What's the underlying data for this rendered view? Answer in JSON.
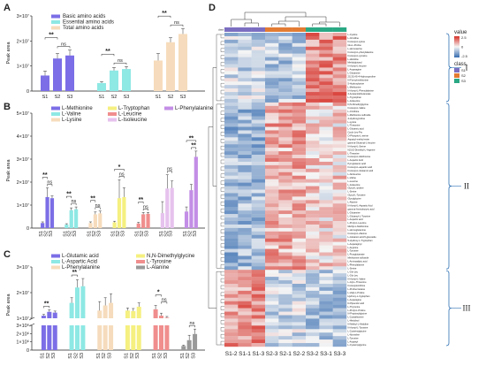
{
  "panels": {
    "A": {
      "letter": "A",
      "ylabel": "Peak area",
      "exponent_label": "×10⁷",
      "chart_data": {
        "type": "bar",
        "ylim": [
          0,
          3
        ],
        "yticks": [
          0,
          1,
          2,
          3
        ],
        "ytick_labels": [
          "0",
          "1×10⁷",
          "2×10⁷",
          "3×10⁷"
        ],
        "groups": [
          "S1",
          "S2",
          "S3"
        ],
        "series": [
          {
            "name": "Basic amino acids",
            "color": "#7b6ee6",
            "values": [
              0.62,
              1.3,
              1.42
            ],
            "errors": [
              0.18,
              0.2,
              0.22
            ]
          },
          {
            "name": "Essential amino acids",
            "color": "#8ee8e4",
            "values": [
              0.32,
              0.82,
              0.88
            ],
            "errors": [
              0.06,
              0.12,
              0.1
            ]
          },
          {
            "name": "Total amino acids",
            "color": "#f6dcbc",
            "values": [
              1.22,
              1.95,
              2.28
            ],
            "errors": [
              0.28,
              0.18,
              0.22
            ]
          }
        ],
        "annotations": [
          {
            "series": 0,
            "pairs": [
              [
                "S1",
                "S2",
                "**"
              ],
              [
                "S2",
                "S3",
                "ns"
              ]
            ]
          },
          {
            "series": 1,
            "pairs": [
              [
                "S1",
                "S2",
                "**"
              ],
              [
                "S2",
                "S3",
                "ns"
              ]
            ]
          },
          {
            "series": 2,
            "pairs": [
              [
                "S1",
                "S2",
                "**"
              ],
              [
                "S2",
                "S3",
                "ns"
              ]
            ]
          }
        ]
      }
    },
    "B": {
      "letter": "B",
      "ylabel": "Peak area",
      "chart_data": {
        "type": "bar",
        "ylim": [
          0,
          5
        ],
        "yticks": [
          0,
          1,
          2,
          3,
          4,
          5
        ],
        "ytick_labels": [
          "0",
          "1×10⁷",
          "2×10⁷",
          "3×10⁷",
          "4×10⁷",
          "5×10⁷"
        ],
        "groups": [
          "S1",
          "S2",
          "S3"
        ],
        "series": [
          {
            "name": "L-Methionine",
            "color": "#7b6ee6",
            "values": [
              0.22,
              1.35,
              1.3
            ],
            "errors": [
              0.05,
              0.4,
              0.1
            ]
          },
          {
            "name": "L-Valine",
            "color": "#8ee8e4",
            "values": [
              0.15,
              0.78,
              0.82
            ],
            "errors": [
              0.04,
              0.1,
              0.1
            ]
          },
          {
            "name": "L-Lysine",
            "color": "#f6dcbc",
            "values": [
              0.22,
              0.6,
              0.64
            ],
            "errors": [
              0.05,
              0.1,
              0.1
            ]
          },
          {
            "name": "L-Tryptophan",
            "color": "#f5f080",
            "values": [
              0.25,
              1.3,
              1.35
            ],
            "errors": [
              0.05,
              0.8,
              0.4
            ]
          },
          {
            "name": "L-Leucine",
            "color": "#f08e8e",
            "values": [
              0.2,
              0.6,
              0.62
            ],
            "errors": [
              0.05,
              0.08,
              0.06
            ]
          },
          {
            "name": "L-Isoleucine",
            "color": "#e6c2ee",
            "values": [
              0.65,
              1.72,
              1.75
            ],
            "errors": [
              0.5,
              0.6,
              0.3
            ]
          },
          {
            "name": "L-Phenylalanine",
            "color": "#c38ee6",
            "values": [
              0.72,
              1.65,
              3.1
            ],
            "errors": [
              0.2,
              0.25,
              0.25
            ]
          }
        ],
        "annotations": [
          {
            "series": 0,
            "pairs": [
              [
                "S1",
                "S2",
                "**"
              ],
              [
                "S2",
                "S3",
                "ns"
              ]
            ]
          },
          {
            "series": 1,
            "pairs": [
              [
                "S1",
                "S2",
                "**"
              ],
              [
                "S2",
                "S3",
                "ns"
              ]
            ]
          },
          {
            "series": 2,
            "pairs": [
              [
                "S1",
                "S2",
                "**"
              ],
              [
                "S2",
                "S3",
                "ns"
              ]
            ]
          },
          {
            "series": 3,
            "pairs": [
              [
                "S1",
                "S3",
                "*"
              ],
              [
                "S2",
                "S3",
                "ns"
              ]
            ]
          },
          {
            "series": 4,
            "pairs": [
              [
                "S1",
                "S2",
                "**"
              ],
              [
                "S2",
                "S3",
                "ns"
              ]
            ]
          },
          {
            "series": 5,
            "pairs": [
              [
                "S2",
                "S3",
                "ns"
              ]
            ]
          },
          {
            "series": 6,
            "pairs": [
              [
                "S1",
                "S3",
                "**"
              ],
              [
                "S2",
                "S3",
                "**"
              ]
            ]
          }
        ]
      }
    },
    "C": {
      "letter": "C",
      "ylabel": "Peak area",
      "chart_data": {
        "type": "bar",
        "broken_axis": true,
        "upper_ylim": [
          1,
          3
        ],
        "upper_yticks": [
          1,
          2,
          3
        ],
        "upper_ytick_labels": [
          "1×10⁷",
          "2×10⁷",
          "3×10⁷"
        ],
        "lower_ylim": [
          0,
          3
        ],
        "lower_yticks": [
          0,
          1,
          2,
          3
        ],
        "lower_ytick_labels": [
          "0",
          "1×10⁶",
          "2×10⁶",
          "3×10⁶"
        ],
        "groups": [
          "S1",
          "S2",
          "S3"
        ],
        "series": [
          {
            "name": "L-Glutamic acid",
            "color": "#7b6ee6",
            "values_scale": "1e7",
            "values": [
              1.1,
              1.25,
              1.22
            ],
            "errors": [
              0.05,
              0.08,
              0.06
            ]
          },
          {
            "name": "L-Aspartic Acid",
            "color": "#8ee8e4",
            "values_scale": "1e7",
            "values": [
              1.6,
              2.2,
              2.25
            ],
            "errors": [
              0.2,
              0.3,
              0.3
            ]
          },
          {
            "name": "L-Phenylalanine",
            "color": "#f6dcbc",
            "values_scale": "1e7",
            "values": [
              1.3,
              1.5,
              1.6
            ],
            "errors": [
              0.35,
              0.3,
              0.35
            ]
          },
          {
            "name": "N,N-Dimethylglycine",
            "color": "#f5f080",
            "values_scale": "1e7",
            "values": [
              1.3,
              1.28,
              1.45
            ],
            "errors": [
              0.1,
              0.1,
              0.15
            ]
          },
          {
            "name": "L-Tyrosine",
            "color": "#f08e8e",
            "values_scale": "1e7",
            "values": [
              1.35,
              1.1,
              1.02
            ],
            "errors": [
              0.15,
              0.1,
              0.05
            ]
          },
          {
            "name": "L-Alanine",
            "color": "#999999",
            "values_scale": "1e6",
            "values": [
              0.5,
              1.2,
              1.95
            ],
            "errors": [
              0.1,
              0.6,
              0.6
            ]
          }
        ],
        "annotations": [
          {
            "series": 0,
            "pairs": [
              [
                "S1",
                "S2",
                "**"
              ]
            ]
          },
          {
            "series": 1,
            "pairs": [
              [
                "S1",
                "S2",
                "**"
              ]
            ]
          },
          {
            "series": 4,
            "pairs": [
              [
                "S1",
                "S2",
                "*"
              ],
              [
                "S2",
                "S3",
                "ns"
              ]
            ]
          },
          {
            "series": 5,
            "pairs": [
              [
                "S2",
                "S3",
                "ns"
              ]
            ]
          }
        ]
      }
    },
    "D": {
      "letter": "D",
      "chart_data": {
        "type": "heatmap",
        "columns": [
          "S1-2",
          "S1-1",
          "S1-3",
          "S2-3",
          "S2-1",
          "S2-2",
          "S3-2",
          "S3-1",
          "S3-3"
        ],
        "class_row_label": "class",
        "class_colors": {
          "S1": "#7b6ec0",
          "S2": "#e27b33",
          "S3": "#2aa884"
        },
        "column_classes": [
          "S1",
          "S1",
          "S1",
          "S2",
          "S2",
          "S2",
          "S3",
          "S3",
          "S3"
        ],
        "legend_value_title": "value",
        "legend_value_ticks": [
          "2.5",
          "0",
          "-2.5"
        ],
        "legend_class_title": "class",
        "legend_class_items": [
          "S1",
          "S2",
          "S3"
        ],
        "cluster_labels": [
          "I",
          "II",
          "III"
        ],
        "cluster_row_counts": [
          20,
          48,
          22
        ],
        "row_labels": [
          "L-Cystine",
          "L-Citrulline",
          "N-Acetyl-L-lysine",
          "Glu-L-Proline",
          "L-Homoserine",
          "N-Acetyl-L-phenylalanine",
          "N-Acetyl-L-tyrosine",
          "L-Histidine",
          "Methylglutaryl",
          "N-Acetyl-L-leucine",
          "L-Asparagine",
          "L-Glutamine",
          "2S,3S,4S-4-Hydroxyproline",
          "N-Formylmethionine",
          "5-Hydroxylysine",
          "L-Methionine",
          "N-Acetyl-L-Phenylalanine",
          "4-Acetamidobutanoate",
          "L-Tryptophan",
          "L-Isoleucine",
          "N,N-Dimethylglycine",
          "N-Acetyl-L-Valine",
          "L-Ornithine",
          "L-Methionine sulfoxide",
          "4-Hydroxyproline",
          "L-Lysine",
          "L-Threonine",
          "L-Glutamic acid",
          "Cyclo-Leu-Pro",
          "O-Phospho-L-serine",
          "Aspartyl-methyl-ester",
          "gamma-Glutamyl-L-leucine",
          "N-Acetyl-L-Serine",
          "N2,N2-Dimethyl-L-Arginine",
          "L-Theanine",
          "N-Acetyl-L-Methionine",
          "L-Aspartic Acid",
          "Pyroglutamic acid",
          "N-Acetyl-L-aspartic acid",
          "N-Acetyl-L-Glutamic acid",
          "L-Norleucine",
          "L-Valine",
          "L-Leucine",
          "L-Isoleucine",
          "Glycyl-L-proline",
          "L-Serine",
          "Glycyl-L-Tyrosine",
          "Glycylglycine",
          "L-Alanine",
          "N-Acetyl-L-Aspartic Acid",
          "gamma-Aminobutyric acid",
          "L-Glutamine",
          "L-Glutamyl-L-Tyrosine",
          "L-Aspartic acid",
          "L-Prolyl-L-Leucine",
          "Methyl-L-Methionine",
          "L-Homoglutamine",
          "N-Acetyl-L-Alanine",
          "L-Glutamic acid-5-glucoside",
          "5-Hydroxy-L-Tryptophan",
          "L-Asparaginyl",
          "L-Arginine",
          "L-Tyrosine",
          "L-Pyroglutamate",
          "Methionine sulfoxide",
          "L-Aminoadipic acid",
          "L-Phenylalanine",
          "L-Serine",
          "L-Gln-Leu",
          "L-Glu-Leu",
          "N-Acetyl-L-Valine",
          "L-Gly-L-Threonine",
          "N-Acetylornithine",
          "L-Proline betaine",
          "L-Valyl-L-Proline",
          "Hydroxy-L-tryptophan",
          "L-Asparagine",
          "D-Pipecolic acid",
          "L-Thyronine",
          "L-Prolyl-L-Proline",
          "N-Propionylglycine",
          "L-Cystathionine",
          "L-Histidinol",
          "N-Methyl-L-Histidine",
          "N-Acetyl-L-Tyrosine",
          "L-Cysteinylglycine",
          "L-Norvaline",
          "L-Tyrosine",
          "L-Aspartyl",
          "L-Cysteinylglycine"
        ],
        "value_range": [
          -2.5,
          2.5
        ]
      }
    }
  }
}
